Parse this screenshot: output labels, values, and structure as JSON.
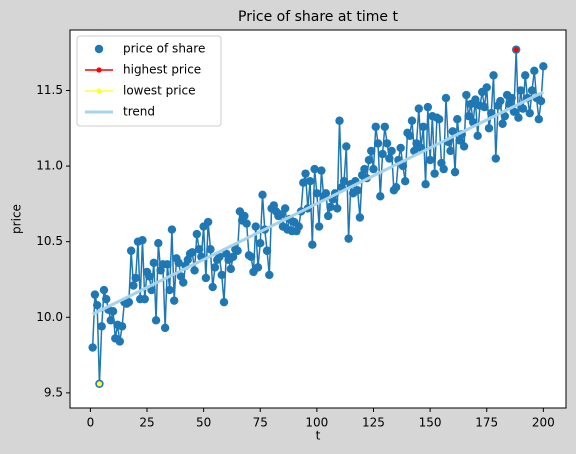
{
  "chart_data": {
    "type": "scatter-line",
    "title": "Price of share at time t",
    "xlabel": "t",
    "ylabel": "price",
    "xlim": [
      -9,
      210
    ],
    "ylim": [
      9.4,
      11.9
    ],
    "xticks": [
      0,
      25,
      50,
      75,
      100,
      125,
      150,
      175,
      200
    ],
    "yticks": [
      9.5,
      {
        "value": 10,
        "label": "10.0"
      },
      10.5,
      {
        "value": 11,
        "label": "11.0"
      },
      11.5
    ],
    "legend": "upper left",
    "series": [
      {
        "name": "price of share",
        "color": "#1f77b4",
        "kind": "scatter",
        "x": [
          1,
          2,
          3,
          4,
          5,
          6,
          7,
          8,
          9,
          10,
          11,
          12,
          13,
          14,
          15,
          16,
          17,
          18,
          19,
          20,
          21,
          22,
          23,
          24,
          25,
          26,
          27,
          28,
          29,
          30,
          31,
          32,
          33,
          34,
          35,
          36,
          37,
          38,
          39,
          40,
          41,
          42,
          43,
          44,
          45,
          46,
          47,
          48,
          49,
          50,
          51,
          52,
          53,
          54,
          55,
          56,
          57,
          58,
          59,
          60,
          61,
          62,
          63,
          64,
          65,
          66,
          67,
          68,
          69,
          70,
          71,
          72,
          73,
          74,
          75,
          76,
          77,
          78,
          79,
          80,
          81,
          82,
          83,
          84,
          85,
          86,
          87,
          88,
          89,
          90,
          91,
          92,
          93,
          94,
          95,
          96,
          97,
          98,
          99,
          100,
          101,
          102,
          103,
          104,
          105,
          106,
          107,
          108,
          109,
          110,
          111,
          112,
          113,
          114,
          115,
          116,
          117,
          118,
          119,
          120,
          121,
          122,
          123,
          124,
          125,
          126,
          127,
          128,
          129,
          130,
          131,
          132,
          133,
          134,
          135,
          136,
          137,
          138,
          139,
          140,
          141,
          142,
          143,
          144,
          145,
          146,
          147,
          148,
          149,
          150,
          151,
          152,
          153,
          154,
          155,
          156,
          157,
          158,
          159,
          160,
          161,
          162,
          163,
          164,
          165,
          166,
          167,
          168,
          169,
          170,
          171,
          172,
          173,
          174,
          175,
          176,
          177,
          178,
          179,
          180,
          181,
          182,
          183,
          184,
          185,
          186,
          187,
          188,
          189,
          190,
          191,
          192,
          193,
          194,
          195,
          196,
          197,
          198,
          199,
          200
        ],
        "values": [
          9.8,
          10.15,
          10.08,
          9.56,
          9.94,
          10.18,
          10.12,
          10.05,
          9.98,
          10.04,
          9.86,
          9.95,
          9.84,
          9.94,
          10.1,
          10.09,
          10.1,
          10.44,
          10.21,
          10.26,
          10.5,
          10.12,
          10.51,
          10.12,
          10.3,
          10.27,
          10.18,
          10.36,
          9.98,
          10.49,
          10.31,
          10.35,
          9.93,
          10.35,
          10.18,
          10.58,
          10.11,
          10.39,
          10.36,
          10.27,
          10.23,
          10.34,
          10.38,
          10.42,
          10.43,
          10.31,
          10.55,
          10.45,
          10.4,
          10.6,
          10.26,
          10.63,
          10.45,
          10.2,
          10.33,
          10.38,
          10.4,
          10.28,
          10.1,
          10.42,
          10.38,
          10.32,
          10.4,
          10.45,
          10.44,
          10.7,
          10.64,
          10.67,
          10.62,
          10.41,
          10.4,
          10.3,
          10.6,
          10.33,
          10.49,
          10.81,
          10.58,
          10.44,
          10.28,
          10.72,
          10.74,
          10.7,
          10.67,
          10.68,
          10.6,
          10.72,
          10.58,
          10.65,
          10.57,
          10.63,
          10.57,
          10.6,
          10.7,
          10.89,
          10.95,
          10.72,
          10.9,
          10.48,
          10.98,
          10.82,
          10.6,
          10.97,
          10.8,
          10.82,
          10.67,
          10.73,
          10.78,
          10.82,
          10.72,
          11.3,
          10.86,
          10.9,
          11.13,
          10.52,
          10.88,
          10.82,
          10.9,
          10.84,
          10.66,
          10.94,
          10.98,
          10.92,
          11.04,
          11.1,
          10.98,
          11.26,
          11.15,
          10.8,
          11.08,
          11.26,
          11.15,
          11.05,
          11.1,
          10.84,
          10.86,
          11.04,
          11.12,
          11.0,
          10.9,
          11.22,
          11.2,
          11.3,
          11.1,
          11.15,
          11.38,
          11.12,
          11.26,
          10.88,
          11.39,
          11.04,
          11.33,
          10.95,
          11.32,
          11.31,
          11.02,
          10.98,
          11.45,
          11.16,
          11.1,
          11.23,
          10.96,
          11.31,
          11.17,
          11.21,
          11.13,
          11.47,
          11.33,
          11.41,
          11.29,
          11.44,
          11.2,
          11.4,
          11.49,
          11.39,
          11.52,
          11.25,
          11.35,
          11.6,
          11.05,
          11.4,
          11.43,
          11.28,
          11.33,
          11.47,
          11.41,
          11.45,
          11.36,
          11.77,
          11.32,
          11.5,
          11.38,
          11.6,
          11.45,
          11.35,
          11.5,
          11.63,
          11.45,
          11.31,
          11.43,
          11.66
        ]
      },
      {
        "name": "highest price",
        "color": "#ff0000",
        "kind": "point-line",
        "x": [
          188
        ],
        "values": [
          11.77
        ]
      },
      {
        "name": "lowest price",
        "color": "#ffff33",
        "kind": "point-line",
        "x": [
          4
        ],
        "values": [
          9.56
        ]
      },
      {
        "name": "trend",
        "color": "#a6d2ea",
        "kind": "line",
        "x": [
          1,
          200
        ],
        "values": [
          10.02,
          11.49
        ]
      }
    ]
  }
}
